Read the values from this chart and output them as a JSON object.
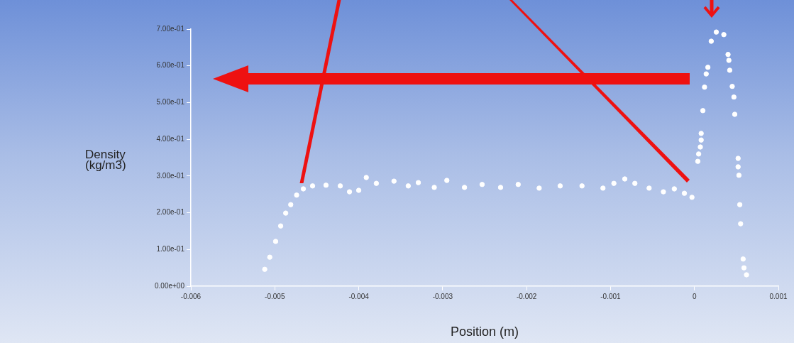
{
  "chart_data": {
    "type": "scatter",
    "xlabel": "Position (m)",
    "ylabel": "Density (kg/m3)",
    "series": [
      {
        "color": "#ffffff",
        "x": [
          -0.00512,
          -0.00506,
          -0.00499,
          -0.00493,
          -0.00487,
          -0.00481,
          -0.00474,
          -0.00466,
          -0.00455,
          -0.00439,
          -0.00422,
          -0.00411,
          -0.004,
          -0.00391,
          -0.00379,
          -0.00358,
          -0.00341,
          -0.00329,
          -0.0031,
          -0.00295,
          -0.00274,
          -0.00253,
          -0.00231,
          -0.0021,
          -0.00185,
          -0.0016,
          -0.00134,
          -0.00109,
          -0.00096,
          -0.00083,
          -0.00071,
          -0.00054,
          -0.00037,
          -0.00024,
          -0.00012,
          -3e-05,
          4e-05,
          5e-05,
          7e-05,
          8e-05,
          8e-05,
          0.0001,
          0.00012,
          0.00014,
          0.00016,
          0.0002,
          0.00026,
          0.00035,
          0.0004,
          0.00041,
          0.00042,
          0.00045,
          0.00047,
          0.00048,
          0.00052,
          0.00052,
          0.00053,
          0.00054,
          0.00055,
          0.00058,
          0.00059,
          0.00062
        ],
        "values": [
          0.046,
          0.079,
          0.122,
          0.164,
          0.199,
          0.222,
          0.248,
          0.265,
          0.273,
          0.275,
          0.273,
          0.257,
          0.261,
          0.296,
          0.28,
          0.286,
          0.273,
          0.282,
          0.269,
          0.288,
          0.269,
          0.277,
          0.269,
          0.277,
          0.267,
          0.273,
          0.273,
          0.267,
          0.28,
          0.292,
          0.28,
          0.267,
          0.257,
          0.265,
          0.253,
          0.242,
          0.34,
          0.36,
          0.379,
          0.398,
          0.416,
          0.478,
          0.542,
          0.578,
          0.596,
          0.667,
          0.692,
          0.685,
          0.631,
          0.615,
          0.588,
          0.544,
          0.515,
          0.468,
          0.348,
          0.325,
          0.302,
          0.222,
          0.17,
          0.074,
          0.05,
          0.031
        ]
      }
    ],
    "xlim": [
      -0.006,
      0.001
    ],
    "xticks": [
      -0.006,
      -0.005,
      -0.004,
      -0.003,
      -0.002,
      -0.001,
      0,
      0.001
    ],
    "ylim": [
      0,
      0.7
    ],
    "yticks": [
      {
        "value": 0,
        "label": "0.00e+00"
      },
      {
        "value": 0.1,
        "label": "1.00e-01"
      },
      {
        "value": 0.2,
        "label": "2.00e-01"
      },
      {
        "value": 0.3,
        "label": "3.00e-01"
      },
      {
        "value": 0.4,
        "label": "4.00e-01"
      },
      {
        "value": 0.5,
        "label": "5.00e-01"
      },
      {
        "value": 0.6,
        "label": "6.00e-01"
      },
      {
        "value": 0.7,
        "label": "7.00e-01"
      }
    ],
    "grid": false,
    "legend": false,
    "marker": "circle"
  }
}
